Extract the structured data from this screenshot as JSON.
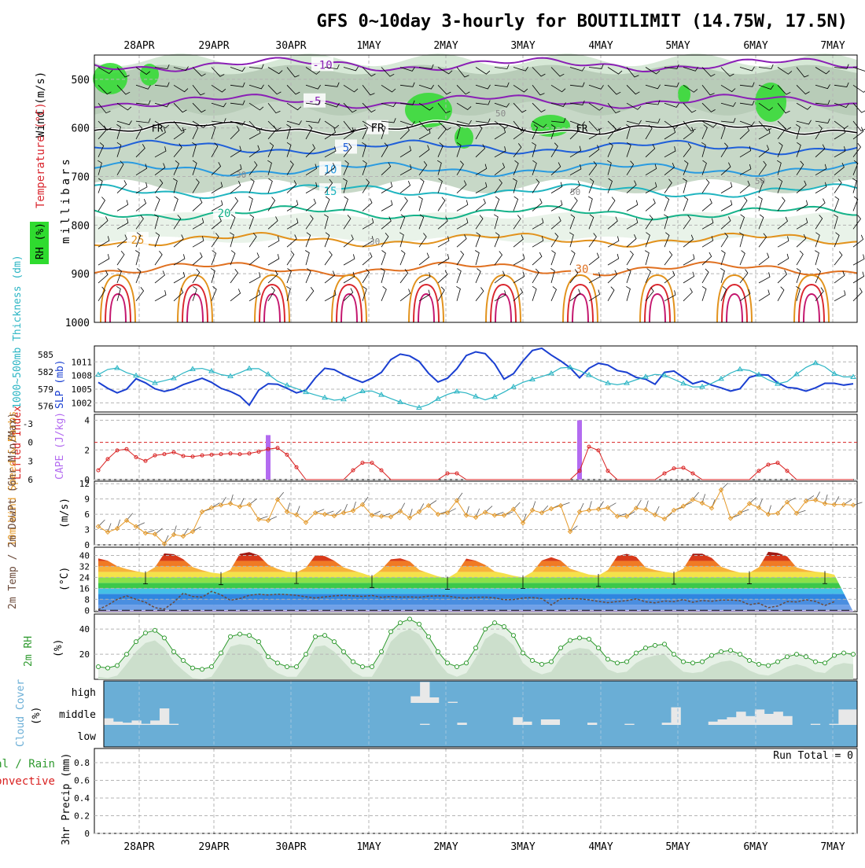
{
  "title": "GFS 0~10day 3-hourly for BOUTILIMIT (14.75W, 17.5N)",
  "dates": [
    "28APR",
    "29APR",
    "30APR",
    "1MAY",
    "2MAY",
    "3MAY",
    "4MAY",
    "5MAY",
    "6MAY",
    "7MAY"
  ],
  "colors": {
    "frame": "#000000",
    "grid": "#b4b4b4",
    "rh_green": "#2fdb2f",
    "temp_purple": "#8a1fb5",
    "temp_blue": "#1f5fd9",
    "temp_cyan": "#20b5c0",
    "temp_teal": "#16b38a",
    "temp_orange": "#e2921c",
    "temp_red": "#d9262e",
    "slp_blue": "#1a3fd1",
    "thk_cyan": "#2bb5c4",
    "li_red": "#d92020",
    "cape_purple": "#b36bf0",
    "wind_orange": "#e59a2a",
    "rh2m_green": "#2f9a2f",
    "cloud_blue": "#6aaed6",
    "cloud_grey": "#e8e8e8"
  },
  "chart_data": [
    {
      "id": "upper_air",
      "type": "contour",
      "ylabel": "millibars",
      "side_labels": [
        "Wind (m/s)",
        "Temperature (°C)",
        "RH (%)"
      ],
      "y_ticks": [
        "500",
        "600",
        "700",
        "800",
        "900",
        "1000"
      ],
      "ylim": [
        450,
        1000
      ],
      "freezing_label": "FR",
      "temperature_contours": [
        {
          "label": "-10",
          "level": -10,
          "value_hpa": 470
        },
        {
          "label": "-5",
          "level": -5,
          "value_hpa": 545
        },
        {
          "label": "FR",
          "level": 0,
          "value_hpa": 600
        },
        {
          "label": "5",
          "level": 5,
          "value_hpa": 640
        },
        {
          "label": "10",
          "level": 10,
          "value_hpa": 685
        },
        {
          "label": "15",
          "level": 15,
          "value_hpa": 730
        },
        {
          "label": "20",
          "level": 20,
          "value_hpa": 775
        },
        {
          "label": "25",
          "level": 25,
          "value_hpa": 830
        },
        {
          "label": "30",
          "level": 30,
          "value_hpa": 890
        }
      ],
      "rh_labels": [
        "30",
        "50",
        "50",
        "30",
        "50"
      ]
    },
    {
      "id": "slp_thickness",
      "type": "line",
      "left_label": "1000~500mb Thickness (dm)",
      "right_label": "SLP (mb)",
      "left_ticks": [
        "585",
        "582",
        "579",
        "576"
      ],
      "right_ticks": [
        "1011",
        "1008",
        "1005",
        "1002"
      ],
      "series": [
        {
          "name": "SLP (mb)",
          "ylim": [
            1000,
            1014.5
          ],
          "values": [
            1006.5,
            1005.2,
            1004.2,
            1005,
            1007.3,
            1006.4,
            1005.1,
            1004.5,
            1005,
            1006,
            1006.7,
            1007.4,
            1006.5,
            1005.2,
            1004.5,
            1003.5,
            1001.5,
            1004.8,
            1006.2,
            1006.1,
            1005.2,
            1004.2,
            1004.8,
            1007.5,
            1009.6,
            1009.3,
            1008.2,
            1007.3,
            1006.5,
            1007.4,
            1008.7,
            1011.5,
            1012.7,
            1012.3,
            1011.1,
            1008.5,
            1006.6,
            1007.4,
            1009.5,
            1012.4,
            1013.2,
            1012.8,
            1010.6,
            1007.2,
            1008.4,
            1011.2,
            1013.5,
            1014,
            1012.5,
            1011.2,
            1009.7,
            1007.5,
            1009.6,
            1010.7,
            1010.3,
            1009.1,
            1008.7,
            1007.6,
            1007.2,
            1006.1,
            1008.7,
            1009,
            1007.6,
            1006.2,
            1006.8,
            1005.9,
            1005.3,
            1004.6,
            1005.1,
            1007.6,
            1008.2,
            1008.1,
            1006.4,
            1005.4,
            1005.2,
            1004.6,
            1005.3,
            1006.3,
            1006.3,
            1005.9,
            1006.2
          ]
        },
        {
          "name": "Thickness (dm)",
          "ylim": [
            575,
            586.5
          ],
          "values": [
            581.5,
            582.4,
            582.7,
            581.9,
            581.4,
            580.8,
            580,
            580.4,
            580.7,
            581.6,
            582.4,
            582.7,
            582.3,
            581.7,
            581.1,
            581.5,
            582.4,
            582.8,
            582.2,
            580.8,
            579.9,
            579.4,
            578.8,
            578.2,
            577.8,
            577.3,
            576.9,
            577.4,
            578.2,
            578.8,
            578.6,
            577.8,
            577.2,
            576.6,
            576.1,
            575.7,
            576.4,
            577.4,
            578.1,
            578.6,
            578.3,
            577.7,
            577.1,
            577.6,
            578.4,
            579.3,
            580.1,
            580.6,
            581.1,
            581.5,
            582.6,
            582.9,
            582.4,
            581.7,
            580.8,
            580.2,
            579.7,
            579.8,
            580.4,
            580.9,
            581.4,
            581.7,
            581.1,
            580.3,
            579.7,
            579.1,
            579.6,
            580.2,
            581.1,
            582.1,
            582.6,
            582.1,
            581.3,
            580.4,
            579.8,
            580.4,
            581.8,
            582.9,
            583.6,
            582.8,
            581.6,
            581.1,
            581.1
          ]
        }
      ]
    },
    {
      "id": "li_cape",
      "type": "line+bar",
      "left_label": "Lifted Index",
      "right_label": "CAPE (J/kg)",
      "li_ticks": [
        "-3",
        "0",
        "3",
        "6"
      ],
      "cape_ticks": [
        "4",
        "2",
        "0"
      ],
      "series": [
        {
          "name": "Lifted Index",
          "values": [
            4.5,
            2.7,
            1.3,
            1.1,
            2.4,
            3,
            2.1,
            1.9,
            1.6,
            2.2,
            2.3,
            2.1,
            2,
            1.9,
            1.8,
            1.9,
            1.8,
            1.5,
            1.1,
            0.9,
            2,
            4,
            6,
            6,
            6,
            6,
            6,
            4.5,
            3.3,
            3.3,
            4.5,
            6,
            6,
            6,
            6,
            6,
            6,
            5,
            5,
            6,
            6,
            6,
            6,
            6,
            6,
            6,
            6,
            6,
            6,
            6,
            6,
            4.6,
            0.7,
            1.3,
            4.6,
            6,
            6,
            6,
            6,
            6,
            5,
            4.2,
            4.1,
            5,
            6,
            6,
            6,
            6,
            6,
            6,
            4.6,
            3.6,
            3.3,
            4.6,
            6,
            6,
            6,
            6,
            6,
            6,
            6
          ]
        },
        {
          "name": "CAPE (J/kg)",
          "values": [
            {
              "x": 18,
              "cape": 3.0
            },
            {
              "x": 51,
              "cape": 4.0
            }
          ]
        }
      ]
    },
    {
      "id": "wind10m",
      "type": "line",
      "left_label": "10m Wind Speed & Barbs",
      "unit": "(m/s)",
      "y_ticks": [
        "12",
        "9",
        "6",
        "3",
        "0"
      ],
      "ylim": [
        0,
        12.5
      ],
      "values": [
        3.6,
        2.5,
        3.2,
        4.8,
        3.6,
        2.3,
        2.1,
        0.2,
        2,
        1.7,
        2.6,
        6.5,
        7.3,
        7.8,
        8.1,
        7.5,
        7.9,
        5,
        4.8,
        8.9,
        6.5,
        5.9,
        4.4,
        6.3,
        6,
        5.7,
        6.3,
        6.7,
        7.9,
        5.8,
        5.6,
        5.5,
        6.6,
        5.3,
        6.5,
        7.7,
        6,
        6.3,
        8.7,
        5.8,
        5.4,
        6.4,
        5.8,
        5.8,
        7,
        4.3,
        6.8,
        6.3,
        7.1,
        7.7,
        2.6,
        6.5,
        6.8,
        7,
        7.3,
        5.6,
        5.6,
        7.2,
        6.9,
        5.9,
        5.1,
        6.8,
        7.6,
        8.9,
        8.2,
        7.2,
        10.8,
        5.2,
        6.3,
        8.1,
        7.3,
        6,
        6.2,
        8.4,
        6.2,
        8.6,
        8.8,
        8.1,
        7.9,
        7.9,
        7.8
      ]
    },
    {
      "id": "temp2m",
      "type": "area+line",
      "left_label": "2m Temp / 2m DewPt (6hr Min/Max)",
      "unit": "(°C)",
      "y_ticks": [
        "40",
        "32",
        "24",
        "16",
        "8",
        "0"
      ],
      "ylim": [
        -1,
        46
      ],
      "temperature_values": [
        37.8,
        36.2,
        32.2,
        30.1,
        28.5,
        27.3,
        31.4,
        41.5,
        40.9,
        37.3,
        31.5,
        29.2,
        27.5,
        26.7,
        29.6,
        41.1,
        42.4,
        40.1,
        33.2,
        30.2,
        28.1,
        27.6,
        31.1,
        40.1,
        39.5,
        36.2,
        31.2,
        29.1,
        27,
        24.6,
        29.8,
        37.2,
        37.9,
        35.7,
        29.5,
        27.1,
        24.8,
        23.4,
        27.6,
        37.7,
        36.2,
        33.1,
        28.4,
        26.9,
        25.2,
        24,
        28,
        36.3,
        38.7,
        36.3,
        30.3,
        28.2,
        26.1,
        25.4,
        29.4,
        39.6,
        41.1,
        39,
        31.2,
        29.4,
        28.1,
        27.1,
        30.4,
        41.3,
        41.3,
        38.2,
        31.7,
        29.3,
        27.5,
        27.4,
        31.4,
        42.6,
        41.9,
        39.3,
        31.2,
        29.4,
        28.2,
        27.5,
        26
      ],
      "dewpoint_values": [
        0.5,
        3.8,
        8,
        10.6,
        8,
        5.9,
        1.9,
        0.9,
        5.9,
        12.5,
        10.1,
        9.6,
        13.8,
        11.3,
        7.3,
        8.6,
        11,
        11.8,
        11.2,
        11.8,
        11.5,
        10.9,
        9.9,
        9,
        9.8,
        10.5,
        10.9,
        10.5,
        10.1,
        10.8,
        9.5,
        10.1,
        9.6,
        9.8,
        9.5,
        10.3,
        10.5,
        10.4,
        9.4,
        8.9,
        9.5,
        9.6,
        9.1,
        7.7,
        7.8,
        9,
        9.3,
        8.5,
        3.9,
        8.3,
        8.6,
        8.4,
        7.6,
        6.5,
        5.6,
        6.4,
        7.1,
        8.3,
        6.2,
        5.5,
        6.8,
        6.3,
        7.8,
        5.9,
        7.2,
        6.6,
        7.4,
        7.5,
        7,
        4.1,
        5.2,
        1.9,
        3.1,
        6.4,
        6.1,
        7.7,
        6.5,
        3.5,
        6.3
      ]
    },
    {
      "id": "rh2m",
      "type": "area+line",
      "left_label": "2m RH",
      "unit": "(%)",
      "y_ticks": [
        "40",
        "20"
      ],
      "ylim": [
        0,
        52
      ],
      "values": [
        10,
        9,
        11,
        20,
        30,
        37,
        39,
        33,
        22,
        15,
        9,
        8,
        10,
        21,
        34,
        36,
        35,
        30,
        18,
        13,
        10,
        10,
        20,
        34,
        35,
        30,
        22,
        14,
        10,
        10,
        22,
        38,
        45,
        48,
        44,
        34,
        22,
        13,
        10,
        13,
        25,
        40,
        45,
        42,
        35,
        21,
        15,
        12,
        14,
        25,
        31,
        33,
        32,
        25,
        16,
        13,
        14,
        21,
        25,
        27,
        28,
        20,
        14,
        13,
        14,
        19,
        22,
        23,
        20,
        15,
        12,
        11,
        14,
        18,
        20,
        18,
        14,
        13,
        19,
        21,
        20
      ]
    },
    {
      "id": "cloud_cover",
      "type": "bar",
      "left_label": "Cloud Cover",
      "unit": "(%)",
      "layers": [
        "high",
        "middle",
        "low"
      ],
      "high": [
        {
          "x": 33,
          "pct": 30
        },
        {
          "x": 34,
          "pct": 95
        },
        {
          "x": 35,
          "pct": 25
        },
        {
          "x": 37,
          "pct": 5
        }
      ],
      "middle": [
        {
          "x": 0,
          "pct": 30
        },
        {
          "x": 1,
          "pct": 15
        },
        {
          "x": 2,
          "pct": 10
        },
        {
          "x": 3,
          "pct": 20
        },
        {
          "x": 4,
          "pct": 5
        },
        {
          "x": 5,
          "pct": 20
        },
        {
          "x": 6,
          "pct": 75
        },
        {
          "x": 7,
          "pct": 5
        },
        {
          "x": 34,
          "pct": 5
        },
        {
          "x": 38,
          "pct": 10
        },
        {
          "x": 44,
          "pct": 35
        },
        {
          "x": 45,
          "pct": 15
        },
        {
          "x": 47,
          "pct": 25
        },
        {
          "x": 48,
          "pct": 25
        },
        {
          "x": 52,
          "pct": 10
        },
        {
          "x": 56,
          "pct": 5
        },
        {
          "x": 60,
          "pct": 10
        },
        {
          "x": 61,
          "pct": 80
        },
        {
          "x": 65,
          "pct": 15
        },
        {
          "x": 66,
          "pct": 25
        },
        {
          "x": 67,
          "pct": 35
        },
        {
          "x": 68,
          "pct": 60
        },
        {
          "x": 69,
          "pct": 40
        },
        {
          "x": 70,
          "pct": 70
        },
        {
          "x": 71,
          "pct": 50
        },
        {
          "x": 72,
          "pct": 60
        },
        {
          "x": 73,
          "pct": 40
        },
        {
          "x": 76,
          "pct": 5
        },
        {
          "x": 78,
          "pct": 5
        },
        {
          "x": 79,
          "pct": 70
        },
        {
          "x": 80,
          "pct": 70
        }
      ]
    },
    {
      "id": "precip",
      "type": "bar",
      "left_label": "3hr Precip (mm)",
      "legend": [
        "Total / Rain",
        "Convective"
      ],
      "y_ticks": [
        "0.8",
        "0.6",
        "0.4",
        "0.2",
        "0"
      ],
      "ylim": [
        0,
        0.96
      ],
      "run_total": "Run Total = 0",
      "values": []
    }
  ]
}
